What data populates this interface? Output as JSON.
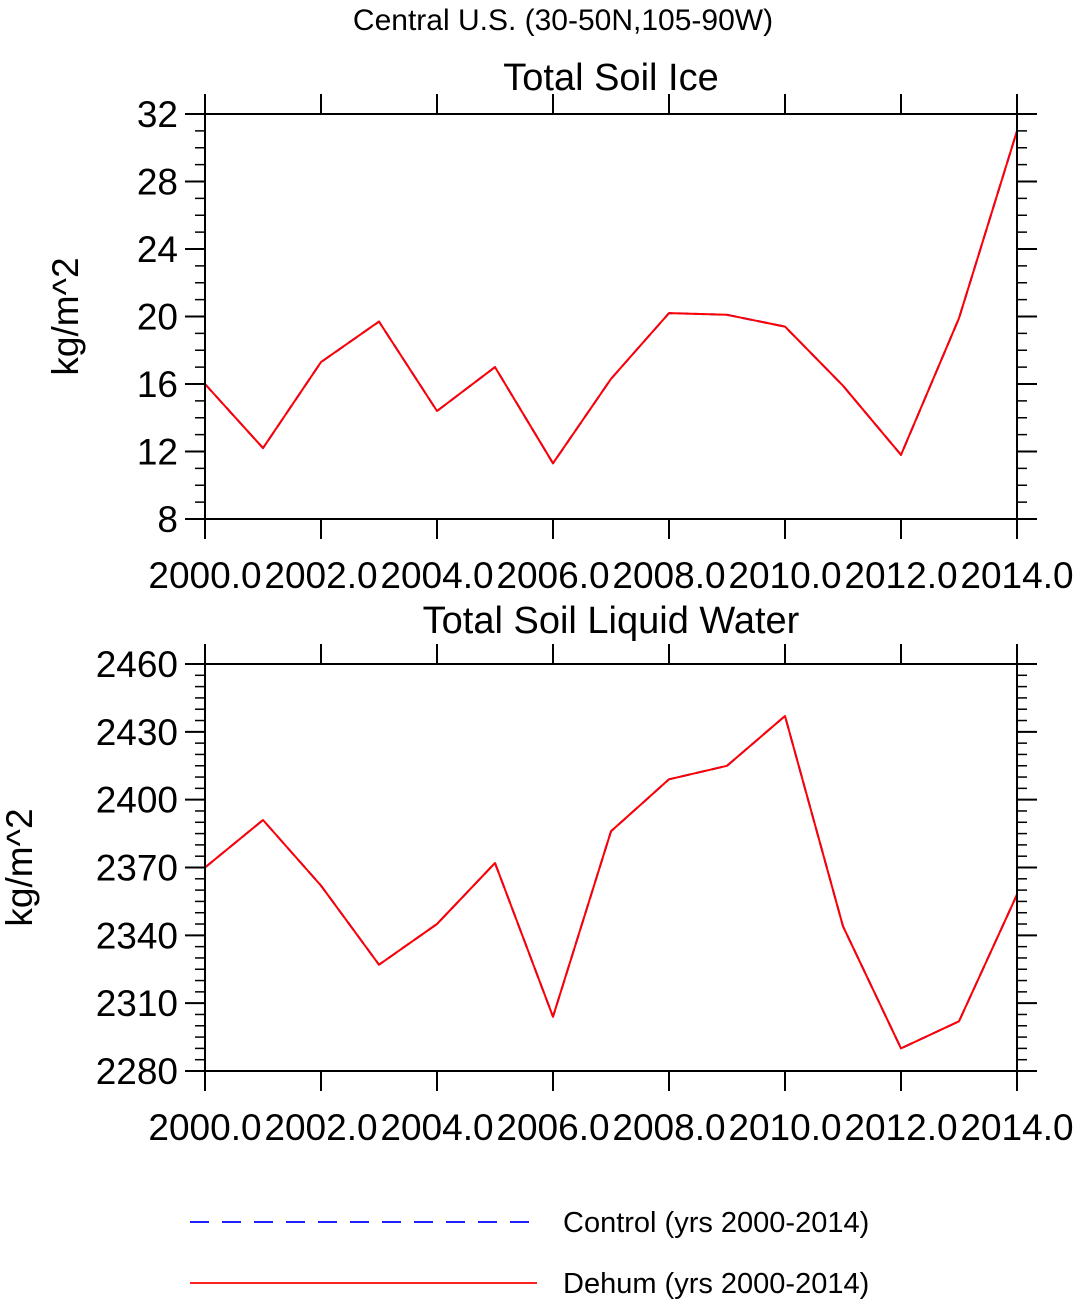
{
  "figure": {
    "suptitle": "Central U.S. (30-50N,105-90W)"
  },
  "chart_data": [
    {
      "type": "line",
      "title": "Total Soil Ice",
      "xlabel": "",
      "ylabel": "kg/m^2",
      "xlim": [
        2000,
        2014
      ],
      "ylim": [
        8,
        32
      ],
      "xticks": [
        2000,
        2002,
        2004,
        2006,
        2008,
        2010,
        2012,
        2014
      ],
      "xtick_labels": [
        "2000.0",
        "2002.0",
        "2004.0",
        "2006.0",
        "2008.0",
        "2010.0",
        "2012.0",
        "2014.0"
      ],
      "yticks": [
        8,
        12,
        16,
        20,
        24,
        28,
        32
      ],
      "ytick_labels": [
        "8",
        "12",
        "16",
        "20",
        "24",
        "28",
        "32"
      ],
      "y_minor_step": 1,
      "x": [
        2000,
        2001,
        2002,
        2003,
        2004,
        2005,
        2006,
        2007,
        2008,
        2009,
        2010,
        2011,
        2012,
        2013,
        2014
      ],
      "series": [
        {
          "name": "Control (yrs 2000-2014)",
          "color": "#0000ff",
          "dashed": true,
          "values": [
            16.0,
            12.2,
            17.3,
            19.7,
            14.4,
            17.0,
            11.3,
            16.3,
            20.2,
            20.1,
            19.4,
            15.9,
            11.8,
            19.9,
            31.0
          ]
        },
        {
          "name": "Dehum (yrs 2000-2014)",
          "color": "#ff0000",
          "dashed": false,
          "values": [
            16.0,
            12.2,
            17.3,
            19.7,
            14.4,
            17.0,
            11.3,
            16.3,
            20.2,
            20.1,
            19.4,
            15.9,
            11.8,
            19.9,
            31.0
          ]
        }
      ]
    },
    {
      "type": "line",
      "title": "Total Soil Liquid Water",
      "xlabel": "",
      "ylabel": "kg/m^2",
      "xlim": [
        2000,
        2014
      ],
      "ylim": [
        2280,
        2460
      ],
      "xticks": [
        2000,
        2002,
        2004,
        2006,
        2008,
        2010,
        2012,
        2014
      ],
      "xtick_labels": [
        "2000.0",
        "2002.0",
        "2004.0",
        "2006.0",
        "2008.0",
        "2010.0",
        "2012.0",
        "2014.0"
      ],
      "yticks": [
        2280,
        2310,
        2340,
        2370,
        2400,
        2430,
        2460
      ],
      "ytick_labels": [
        "2280",
        "2310",
        "2340",
        "2370",
        "2400",
        "2430",
        "2460"
      ],
      "y_minor_step": 5,
      "x": [
        2000,
        2001,
        2002,
        2003,
        2004,
        2005,
        2006,
        2007,
        2008,
        2009,
        2010,
        2011,
        2012,
        2013,
        2014
      ],
      "series": [
        {
          "name": "Control (yrs 2000-2014)",
          "color": "#0000ff",
          "dashed": true,
          "values": [
            2370,
            2391,
            2362,
            2327,
            2345,
            2372,
            2304,
            2386,
            2409,
            2415,
            2437,
            2344,
            2290,
            2302,
            2358
          ]
        },
        {
          "name": "Dehum (yrs 2000-2014)",
          "color": "#ff0000",
          "dashed": false,
          "values": [
            2370,
            2391,
            2362,
            2327,
            2345,
            2372,
            2304,
            2386,
            2409,
            2415,
            2437,
            2344,
            2290,
            2302,
            2358
          ]
        }
      ]
    }
  ],
  "legend": {
    "placement": "bottom",
    "entries": [
      {
        "label": "Control (yrs 2000-2014)",
        "color": "#0000ff",
        "dashed": true
      },
      {
        "label": "Dehum (yrs 2000-2014)",
        "color": "#ff0000",
        "dashed": false
      }
    ]
  }
}
